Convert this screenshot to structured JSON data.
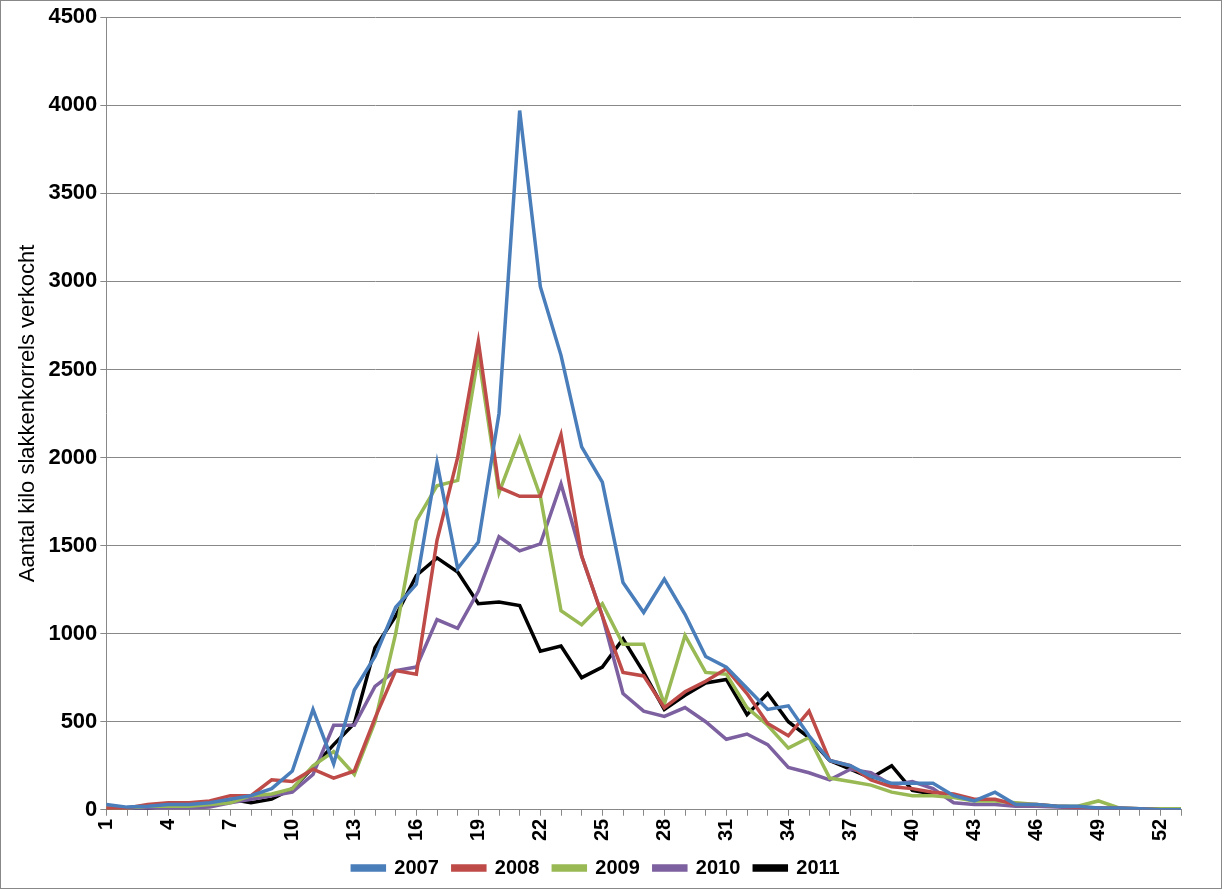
{
  "chart_data": {
    "type": "line",
    "y_label": "Aantal kilo slakkenkorrels verkocht",
    "categories": [
      "1",
      null,
      null,
      "4",
      null,
      null,
      "7",
      null,
      null,
      "10",
      null,
      null,
      "13",
      null,
      null,
      "16",
      null,
      null,
      "19",
      null,
      null,
      "22",
      null,
      null,
      "25",
      null,
      null,
      "28",
      null,
      null,
      "31",
      null,
      null,
      "34",
      null,
      null,
      "37",
      null,
      null,
      "40",
      null,
      null,
      "43",
      null,
      null,
      "46",
      null,
      null,
      "49",
      null,
      null,
      "52",
      null
    ],
    "series": [
      {
        "name": "2007",
        "color": "#4a7ebb",
        "values": [
          30,
          15,
          20,
          30,
          30,
          40,
          60,
          80,
          120,
          220,
          570,
          260,
          680,
          870,
          1150,
          1280,
          1970,
          1370,
          1520,
          2250,
          3970,
          2970,
          2580,
          2060,
          1860,
          1290,
          1120,
          1310,
          1110,
          870,
          810,
          690,
          570,
          590,
          420,
          280,
          250,
          190,
          150,
          150,
          150,
          80,
          50,
          100,
          30,
          30,
          20,
          20,
          10,
          10,
          5,
          0,
          0
        ]
      },
      {
        "name": "2008",
        "color": "#be4b48",
        "values": [
          10,
          10,
          30,
          40,
          40,
          50,
          80,
          80,
          170,
          160,
          230,
          180,
          220,
          520,
          790,
          770,
          1530,
          2000,
          2660,
          1830,
          1780,
          1780,
          2130,
          1440,
          1100,
          780,
          760,
          580,
          670,
          730,
          800,
          660,
          490,
          420,
          560,
          280,
          250,
          170,
          130,
          120,
          100,
          90,
          60,
          60,
          30,
          30,
          20,
          15,
          10,
          10,
          5,
          0,
          0
        ]
      },
      {
        "name": "2009",
        "color": "#98b954",
        "values": [
          10,
          10,
          20,
          20,
          20,
          30,
          40,
          80,
          90,
          120,
          250,
          330,
          200,
          500,
          1000,
          1640,
          1840,
          1870,
          2580,
          1800,
          2110,
          1780,
          1130,
          1050,
          1170,
          940,
          940,
          600,
          990,
          780,
          770,
          580,
          480,
          350,
          410,
          180,
          160,
          140,
          100,
          80,
          80,
          70,
          50,
          50,
          40,
          30,
          20,
          20,
          50,
          10,
          5,
          5,
          5
        ]
      },
      {
        "name": "2010",
        "color": "#7d60a0",
        "values": [
          5,
          5,
          10,
          10,
          10,
          15,
          40,
          60,
          80,
          100,
          200,
          480,
          480,
          700,
          790,
          810,
          1080,
          1030,
          1240,
          1550,
          1470,
          1510,
          1850,
          1440,
          1100,
          660,
          560,
          530,
          580,
          500,
          400,
          430,
          370,
          240,
          210,
          170,
          230,
          210,
          140,
          160,
          120,
          40,
          30,
          30,
          20,
          20,
          15,
          10,
          10,
          5,
          5,
          0,
          0
        ]
      },
      {
        "name": "2011",
        "color": "#000000",
        "values": [
          0,
          10,
          10,
          20,
          20,
          30,
          60,
          40,
          60,
          120,
          240,
          370,
          490,
          920,
          1100,
          1330,
          1430,
          1350,
          1170,
          1180,
          1160,
          900,
          930,
          750,
          810,
          970,
          780,
          570,
          650,
          720,
          740,
          540,
          660,
          500,
          410,
          280,
          230,
          180,
          250,
          110,
          90,
          null,
          null,
          null,
          null,
          null,
          null,
          null,
          null,
          null,
          null,
          null,
          null
        ]
      }
    ],
    "ylim": [
      0,
      4500
    ],
    "yticks": [
      0,
      500,
      1000,
      1500,
      2000,
      2500,
      3000,
      3500,
      4000,
      4500
    ],
    "grid": true,
    "legend": "bottom"
  }
}
